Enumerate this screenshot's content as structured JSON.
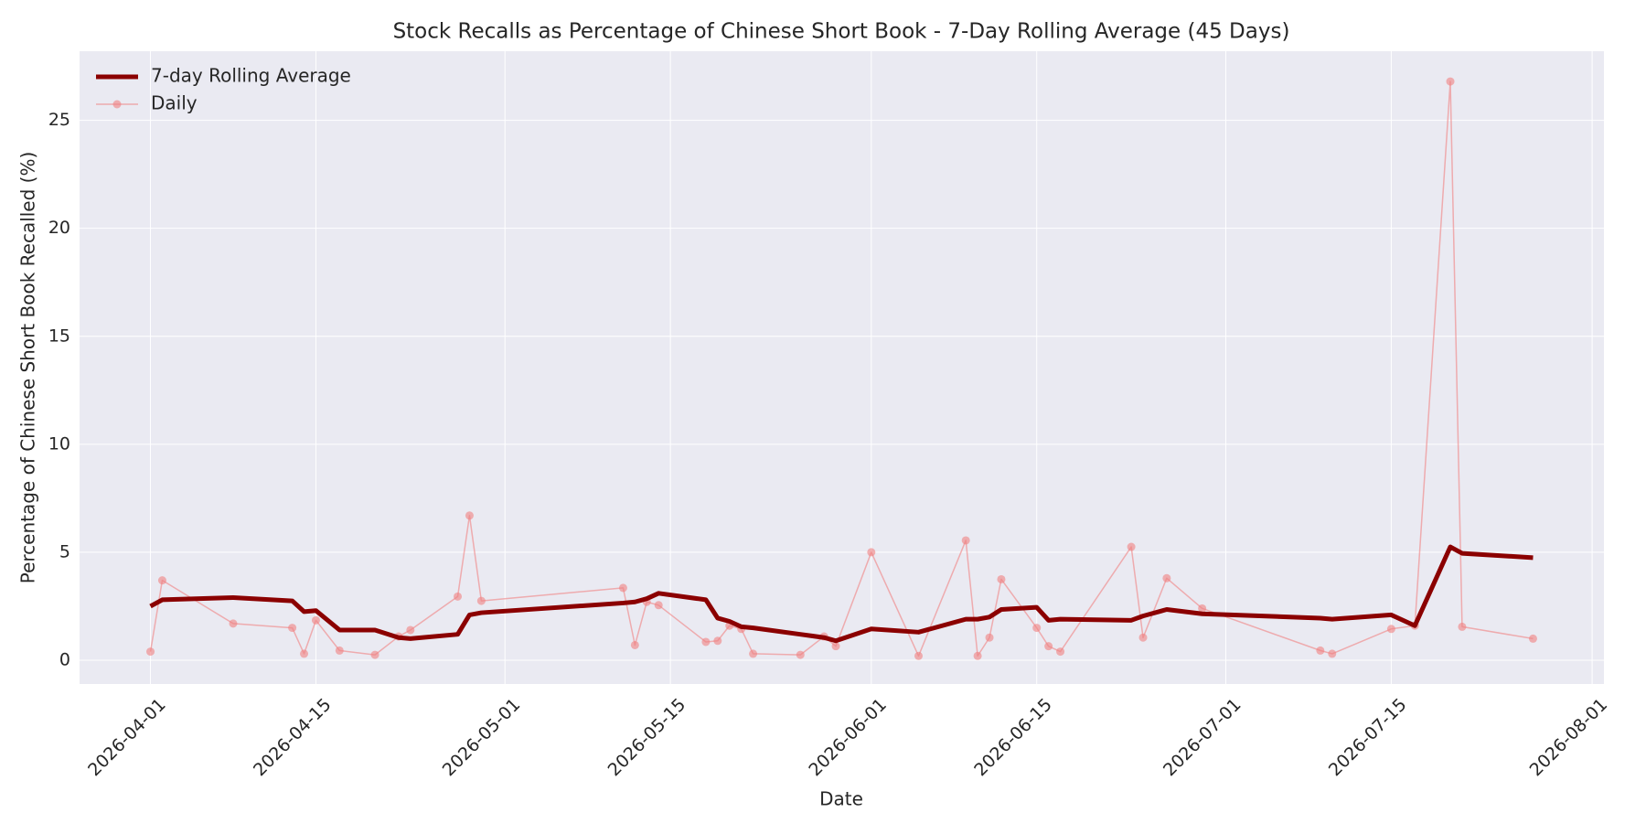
{
  "chart_data": {
    "type": "line",
    "title": "Stock Recalls as Percentage of Chinese Short Book - 7-Day Rolling Average (45 Days)",
    "x_label": "Date",
    "y_label": "Percentage of Chinese Short Book Recalled (%)",
    "x": [
      "2026-04-01",
      "2026-04-02",
      "2026-04-08",
      "2026-04-13",
      "2026-04-14",
      "2026-04-15",
      "2026-04-17",
      "2026-04-20",
      "2026-04-22",
      "2026-04-23",
      "2026-04-27",
      "2026-04-28",
      "2026-04-29",
      "2026-05-11",
      "2026-05-12",
      "2026-05-13",
      "2026-05-14",
      "2026-05-18",
      "2026-05-19",
      "2026-05-20",
      "2026-05-21",
      "2026-05-22",
      "2026-05-26",
      "2026-05-28",
      "2026-05-29",
      "2026-06-01",
      "2026-06-05",
      "2026-06-09",
      "2026-06-10",
      "2026-06-11",
      "2026-06-12",
      "2026-06-15",
      "2026-06-16",
      "2026-06-17",
      "2026-06-23",
      "2026-06-24",
      "2026-06-26",
      "2026-06-29",
      "2026-07-09",
      "2026-07-10",
      "2026-07-15",
      "2026-07-17",
      "2026-07-20",
      "2026-07-21",
      "2026-07-27"
    ],
    "series": [
      {
        "name": "7-day Rolling Average",
        "color": "#8b0000",
        "line_width": 5,
        "marker": false,
        "values": [
          2.5,
          2.8,
          2.9,
          2.75,
          2.25,
          2.3,
          1.4,
          1.4,
          1.05,
          1.0,
          1.2,
          2.1,
          2.2,
          2.65,
          2.7,
          2.85,
          3.1,
          2.8,
          1.95,
          1.8,
          1.55,
          1.5,
          1.2,
          1.05,
          0.9,
          1.45,
          1.3,
          1.9,
          1.9,
          2.0,
          2.35,
          2.45,
          1.85,
          1.9,
          1.85,
          2.05,
          2.35,
          2.15,
          1.95,
          1.9,
          2.1,
          1.6,
          5.25,
          4.95,
          4.75
        ]
      },
      {
        "name": "Daily",
        "color": "#f08080",
        "line_width": 1.5,
        "marker": true,
        "values": [
          0.4,
          3.7,
          1.7,
          1.5,
          0.3,
          1.85,
          0.45,
          0.25,
          1.1,
          1.4,
          2.95,
          6.7,
          2.75,
          3.35,
          0.7,
          2.7,
          2.55,
          0.85,
          0.9,
          1.6,
          1.45,
          0.3,
          0.25,
          1.1,
          0.65,
          5.0,
          0.2,
          5.55,
          0.2,
          1.05,
          3.75,
          1.5,
          0.65,
          0.4,
          5.25,
          1.05,
          3.8,
          2.4,
          0.45,
          0.3,
          1.45,
          1.6,
          26.8,
          1.55,
          1.0
        ]
      }
    ],
    "xlim": [
      "2026-03-26",
      "2026-08-02"
    ],
    "xticks": [
      "2026-04-01",
      "2026-04-15",
      "2026-05-01",
      "2026-05-15",
      "2026-06-01",
      "2026-06-15",
      "2026-07-01",
      "2026-07-15",
      "2026-08-01"
    ],
    "ylim": [
      -1.1,
      28.2
    ],
    "yticks": [
      0,
      5,
      10,
      15,
      20,
      25
    ],
    "grid": true,
    "legend": "upper left"
  }
}
